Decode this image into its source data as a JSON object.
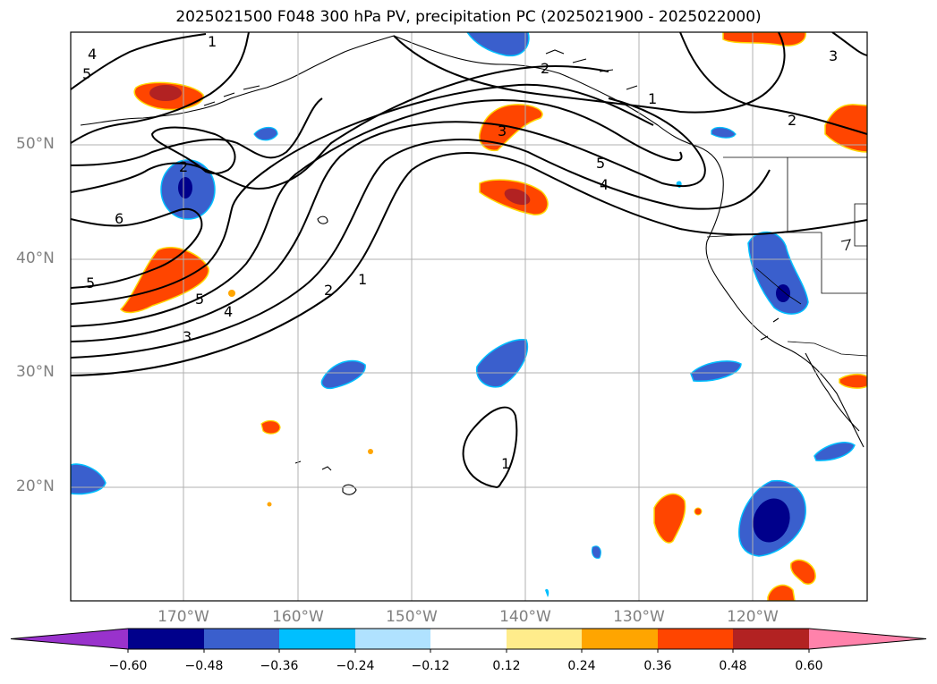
{
  "title": "2025021500 F048 300 hPa PV, precipitation PC (2025021900 - 2025022000)",
  "lat_labels": [
    "50°N",
    "40°N",
    "30°N",
    "20°N"
  ],
  "lon_labels": [
    "170°W",
    "160°W",
    "150°W",
    "140°W",
    "130°W",
    "120°W"
  ],
  "colorbar": {
    "tick_labels": [
      "−0.60",
      "−0.48",
      "−0.36",
      "−0.24",
      "−0.12",
      "0.12",
      "0.24",
      "0.36",
      "0.48",
      "0.60"
    ],
    "colors": [
      "#9932cc",
      "#00008b",
      "#3a5fcd",
      "#00bfff",
      "#b0e2ff",
      "#ffffff",
      "#ffec8b",
      "#ffa500",
      "#ff4500",
      "#b22222",
      "#ff82ab"
    ]
  },
  "contour_labels": [
    "4",
    "5",
    "1",
    "2",
    "6",
    "5",
    "4",
    "3",
    "2",
    "1",
    "3",
    "5",
    "4",
    "2",
    "1",
    "3",
    "2",
    "1",
    "5"
  ]
}
